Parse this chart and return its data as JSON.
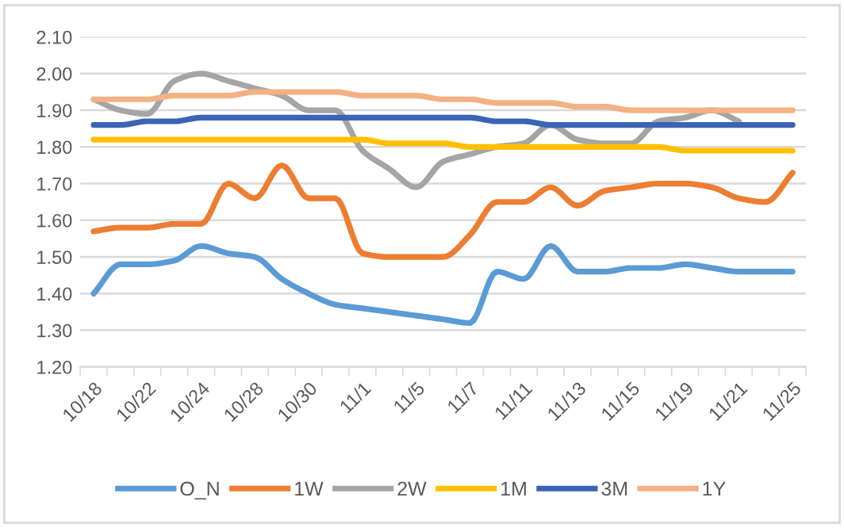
{
  "chart_data": {
    "type": "line",
    "categories": [
      "10/18",
      null,
      "10/22",
      null,
      "10/24",
      null,
      "10/28",
      null,
      "10/30",
      null,
      "11/1",
      null,
      "11/5",
      null,
      "11/7",
      null,
      "11/11",
      null,
      "11/13",
      null,
      "11/15",
      null,
      "11/19",
      null,
      "11/21",
      null,
      "11/25"
    ],
    "series": [
      {
        "name": "O_N",
        "color": "#5b9bd5",
        "values": [
          1.4,
          1.48,
          1.48,
          1.49,
          1.53,
          1.51,
          1.5,
          1.44,
          1.4,
          1.37,
          1.36,
          1.35,
          1.34,
          1.33,
          1.32,
          1.46,
          1.44,
          1.53,
          1.46,
          1.46,
          1.47,
          1.47,
          1.48,
          1.47,
          1.46,
          1.46,
          1.46
        ]
      },
      {
        "name": "1W",
        "color": "#ed7d31",
        "values": [
          1.57,
          1.58,
          1.58,
          1.59,
          1.59,
          1.7,
          1.66,
          1.75,
          1.66,
          1.66,
          1.51,
          1.5,
          1.5,
          1.5,
          1.56,
          1.65,
          1.65,
          1.69,
          1.64,
          1.68,
          1.69,
          1.7,
          1.7,
          1.69,
          1.66,
          1.65,
          1.73
        ]
      },
      {
        "name": "2W",
        "color": "#a5a5a5",
        "values": [
          1.93,
          1.9,
          1.89,
          1.98,
          2.0,
          1.98,
          1.96,
          1.94,
          1.9,
          1.9,
          1.79,
          1.74,
          1.69,
          1.76,
          1.78,
          1.8,
          1.81,
          1.86,
          1.82,
          1.81,
          1.81,
          1.87,
          1.88,
          1.9,
          1.87,
          null,
          null
        ]
      },
      {
        "name": "1M",
        "color": "#ffc000",
        "values": [
          1.82,
          1.82,
          1.82,
          1.82,
          1.82,
          1.82,
          1.82,
          1.82,
          1.82,
          1.82,
          1.82,
          1.81,
          1.81,
          1.81,
          1.8,
          1.8,
          1.8,
          1.8,
          1.8,
          1.8,
          1.8,
          1.8,
          1.79,
          1.79,
          1.79,
          1.79,
          1.79
        ]
      },
      {
        "name": "3M",
        "color": "#3b64b4",
        "values": [
          1.86,
          1.86,
          1.87,
          1.87,
          1.88,
          1.88,
          1.88,
          1.88,
          1.88,
          1.88,
          1.88,
          1.88,
          1.88,
          1.88,
          1.88,
          1.87,
          1.87,
          1.86,
          1.86,
          1.86,
          1.86,
          1.86,
          1.86,
          1.86,
          1.86,
          1.86,
          1.86
        ]
      },
      {
        "name": "1Y",
        "color": "#f4b183",
        "values": [
          1.93,
          1.93,
          1.93,
          1.94,
          1.94,
          1.94,
          1.95,
          1.95,
          1.95,
          1.95,
          1.94,
          1.94,
          1.94,
          1.93,
          1.93,
          1.92,
          1.92,
          1.92,
          1.91,
          1.91,
          1.9,
          1.9,
          1.9,
          1.9,
          1.9,
          1.9,
          1.9
        ]
      }
    ],
    "ylim": [
      1.2,
      2.1
    ],
    "yticks": [
      {
        "value": 1.2,
        "label": "1.20"
      },
      {
        "value": 1.3,
        "label": "1.30"
      },
      {
        "value": 1.4,
        "label": "1.40"
      },
      {
        "value": 1.5,
        "label": "1.50"
      },
      {
        "value": 1.6,
        "label": "1.60"
      },
      {
        "value": 1.7,
        "label": "1.70"
      },
      {
        "value": 1.8,
        "label": "1.80"
      },
      {
        "value": 1.9,
        "label": "1.90"
      },
      {
        "value": 2.0,
        "label": "2.00"
      },
      {
        "value": 2.1,
        "label": "2.10"
      }
    ],
    "grid": "y",
    "legend": "bottom",
    "marker": "none",
    "line_style": "solid"
  }
}
